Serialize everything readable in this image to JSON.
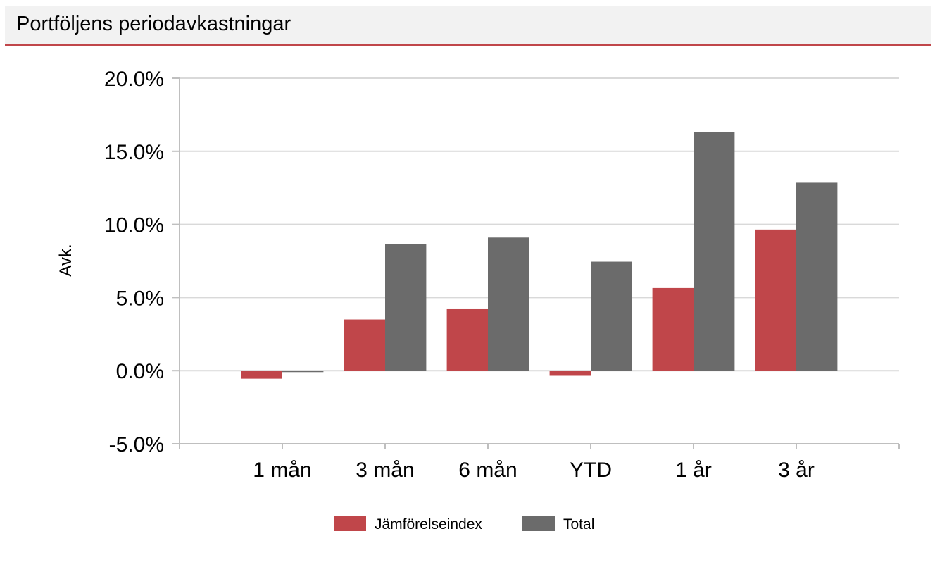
{
  "panel": {
    "title": "Portföljens periodavkastningar"
  },
  "chart_data": {
    "type": "bar",
    "title": "",
    "xlabel": "",
    "ylabel": "Avk.",
    "ylim": [
      -5,
      20
    ],
    "y_ticks": [
      -5,
      0,
      5,
      10,
      15,
      20
    ],
    "y_tick_labels": [
      "-5.0%",
      "0.0%",
      "5.0%",
      "10.0%",
      "15.0%",
      "20.0%"
    ],
    "categories": [
      "1 mån",
      "3 mån",
      "6 mån",
      "YTD",
      "1 år",
      "3 år"
    ],
    "series": [
      {
        "name": "Jämförelseindex",
        "color": "#c0464a",
        "values": [
          -0.55,
          3.5,
          4.25,
          -0.35,
          5.65,
          9.65
        ]
      },
      {
        "name": "Total",
        "color": "#6b6b6b",
        "values": [
          -0.1,
          8.65,
          9.1,
          7.45,
          16.3,
          12.85
        ]
      }
    ],
    "grid": true,
    "legend": "bottom-center"
  }
}
